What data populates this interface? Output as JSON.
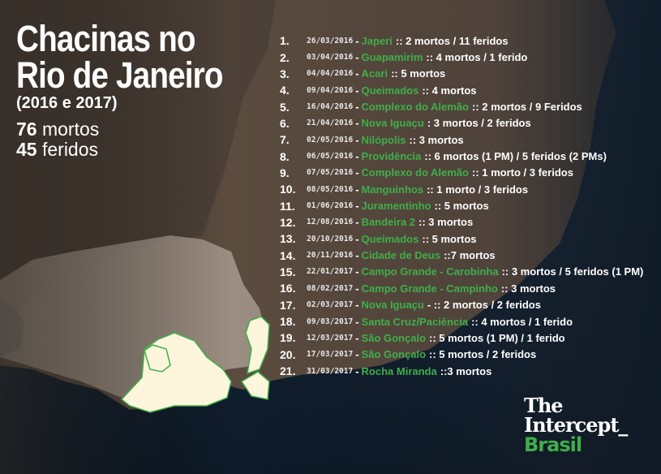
{
  "title": {
    "line1": "Chacinas no",
    "line2": "Rio de Janeiro",
    "period": "(2016 e 2017)",
    "deaths_count": "76",
    "deaths_label": "mortos",
    "injured_count": "45",
    "injured_label": "feridos"
  },
  "colors": {
    "place": "#3fae4a",
    "land": "#5c4c40",
    "sea": "#142231",
    "highlight": "#fdf6dc"
  },
  "events": [
    {
      "n": "1.",
      "date": "26/03/2016",
      "place": "Japeri",
      "result": ":: 2 mortos / 11 feridos"
    },
    {
      "n": "2.",
      "date": "03/04/2016",
      "place": "Guapamirim",
      "result": ":: 4 mortos / 1 ferido"
    },
    {
      "n": "3.",
      "date": "04/04/2016",
      "place": "Acari",
      "result": ":: 5 mortos"
    },
    {
      "n": "4.",
      "date": "09/04/2016",
      "place": "Queimados",
      "result": ":: 4 mortos"
    },
    {
      "n": "5.",
      "date": "16/04/2016",
      "place": "Complexo do Alemão",
      "result": ":: 2 mortos / 9 Feridos"
    },
    {
      "n": "6.",
      "date": "21/04/2016",
      "place": "Nova Iguaçu",
      "result": ": 3 mortos / 2 feridos"
    },
    {
      "n": "7.",
      "date": "02/05/2016",
      "place": "Nilópolis",
      "result": ":: 3 mortos"
    },
    {
      "n": "8.",
      "date": "06/05/2016",
      "place": "Providência",
      "result": ":: 6 mortos (1 PM) / 5 feridos (2 PMs)"
    },
    {
      "n": "9.",
      "date": "07/05/2016",
      "place": "Complexo do Alemão",
      "result": ":: 1 morto / 3 feridos"
    },
    {
      "n": "10.",
      "date": "08/05/2016",
      "place": "Manguinhos",
      "result": ":: 1 morto / 3 feridos"
    },
    {
      "n": "11.",
      "date": "01/06/2016",
      "place": "Juramentinho",
      "result": ":: 5 mortos"
    },
    {
      "n": "12.",
      "date": "12/08/2016",
      "place": "Bandeira 2",
      "result": ":: 3 mortos"
    },
    {
      "n": "13.",
      "date": "20/10/2016",
      "place": "Queimados",
      "result": ":: 5 mortos"
    },
    {
      "n": "14.",
      "date": "20/11/2016",
      "place": "Cidade de Deus",
      "result": "::7 mortos"
    },
    {
      "n": "15.",
      "date": "22/01/2017",
      "place": "Campo Grande - Carobinha",
      "result": ":: 3 mortos / 5 feridos (1 PM)"
    },
    {
      "n": "16.",
      "date": "08/02/2017",
      "place": "Campo Grande - Campinho",
      "result": ":: 3 mortos"
    },
    {
      "n": "17.",
      "date": "02/03/2017",
      "place": "Nova Iguaçu",
      "result": "- :: 2 mortos / 2 feridos"
    },
    {
      "n": "18.",
      "date": "09/03/2017",
      "place": "Santa Cruz/Paciência",
      "result": ":: 4 mortos / 1 ferido"
    },
    {
      "n": "19.",
      "date": "12/03/2017",
      "place": "São Gonçalo",
      "result": ":: 5 mortos (1 PM) / 1 ferido"
    },
    {
      "n": "20.",
      "date": "17/03/2017",
      "place": "São Gonçalo",
      "result": ":: 5 mortos / 2 feridos"
    },
    {
      "n": "21.",
      "date": "31/03/2017",
      "place": "Rocha Miranda",
      "result": "::3 mortos"
    }
  ],
  "logo": {
    "line1": "The",
    "line2": "Intercept_",
    "line3": "Brasil"
  }
}
